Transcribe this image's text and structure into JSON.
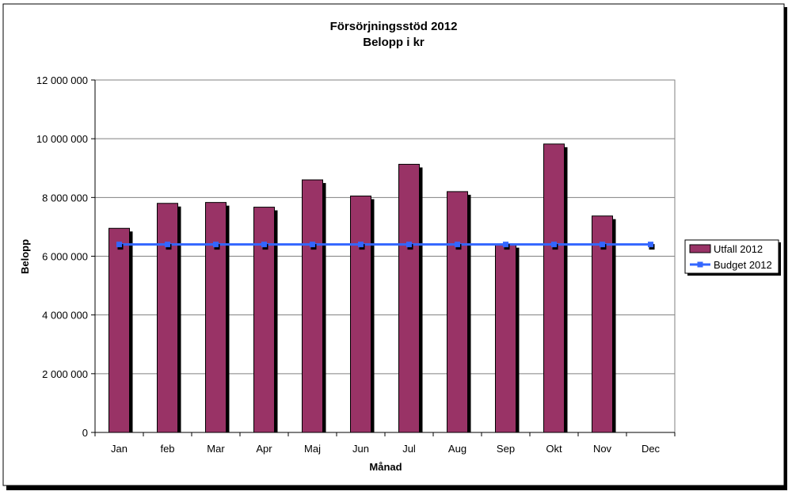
{
  "chart_data": {
    "type": "bar",
    "title": "Försörjningsstöd 2012",
    "subtitle": "Belopp i kr",
    "xlabel": "Månad",
    "ylabel": "Belopp",
    "categories": [
      "Jan",
      "feb",
      "Mar",
      "Apr",
      "Maj",
      "Jun",
      "Jul",
      "Aug",
      "Sep",
      "Okt",
      "Nov",
      "Dec"
    ],
    "ylim": [
      0,
      12000000
    ],
    "yticks": [
      0,
      2000000,
      4000000,
      6000000,
      8000000,
      10000000,
      12000000
    ],
    "ytick_labels": [
      "0",
      "2 000 000",
      "4 000 000",
      "6 000 000",
      "8 000 000",
      "10 000 000",
      "12 000 000"
    ],
    "grid": true,
    "legend_position": "right",
    "series": [
      {
        "name": "Utfall 2012",
        "type": "bar",
        "color": "#993366",
        "values": [
          6950000,
          7800000,
          7830000,
          7670000,
          8600000,
          8050000,
          9130000,
          8200000,
          6400000,
          9820000,
          7370000,
          null
        ]
      },
      {
        "name": "Budget 2012",
        "type": "line",
        "color": "#3366FF",
        "values": [
          6400000,
          6400000,
          6400000,
          6400000,
          6400000,
          6400000,
          6400000,
          6400000,
          6400000,
          6400000,
          6400000,
          6400000
        ]
      }
    ]
  }
}
